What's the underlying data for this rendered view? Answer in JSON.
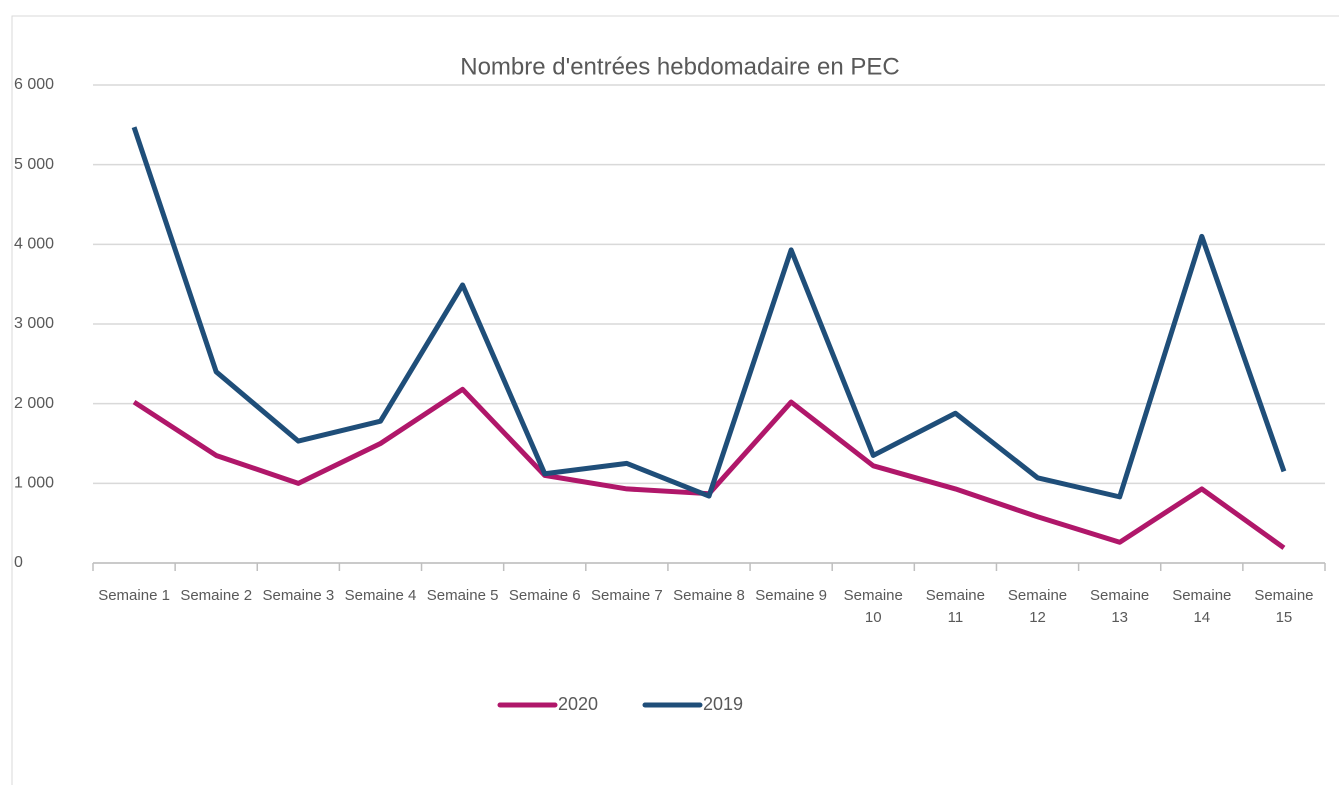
{
  "chart_data": {
    "type": "line",
    "title": "Nombre d'entrées hebdomadaire en PEC",
    "categories": [
      "Semaine 1",
      "Semaine 2",
      "Semaine 3",
      "Semaine 4",
      "Semaine 5",
      "Semaine 6",
      "Semaine 7",
      "Semaine 8",
      "Semaine 9",
      "Semaine 10",
      "Semaine 11",
      "Semaine 12",
      "Semaine 13",
      "Semaine 14",
      "Semaine 15"
    ],
    "series": [
      {
        "name": "2020",
        "color": "#b0176a",
        "values": [
          2020,
          1350,
          1000,
          1500,
          2180,
          1100,
          930,
          870,
          2020,
          1220,
          930,
          580,
          260,
          930,
          190
        ]
      },
      {
        "name": "2019",
        "color": "#1f4e79",
        "values": [
          5470,
          2400,
          1530,
          1780,
          3490,
          1120,
          1250,
          840,
          3930,
          1350,
          1880,
          1070,
          830,
          4100,
          1150
        ]
      }
    ],
    "ylim": [
      0,
      6000
    ],
    "yticks": [
      0,
      {
        "value": 1000,
        "label": "1 000"
      },
      {
        "value": 2000,
        "label": "2 000"
      },
      {
        "value": 3000,
        "label": "3 000"
      },
      {
        "value": 4000,
        "label": "4 000"
      },
      {
        "value": 5000,
        "label": "5 000"
      },
      {
        "value": 6000,
        "label": "6 000"
      }
    ],
    "grid": true,
    "legend": "bottom"
  }
}
